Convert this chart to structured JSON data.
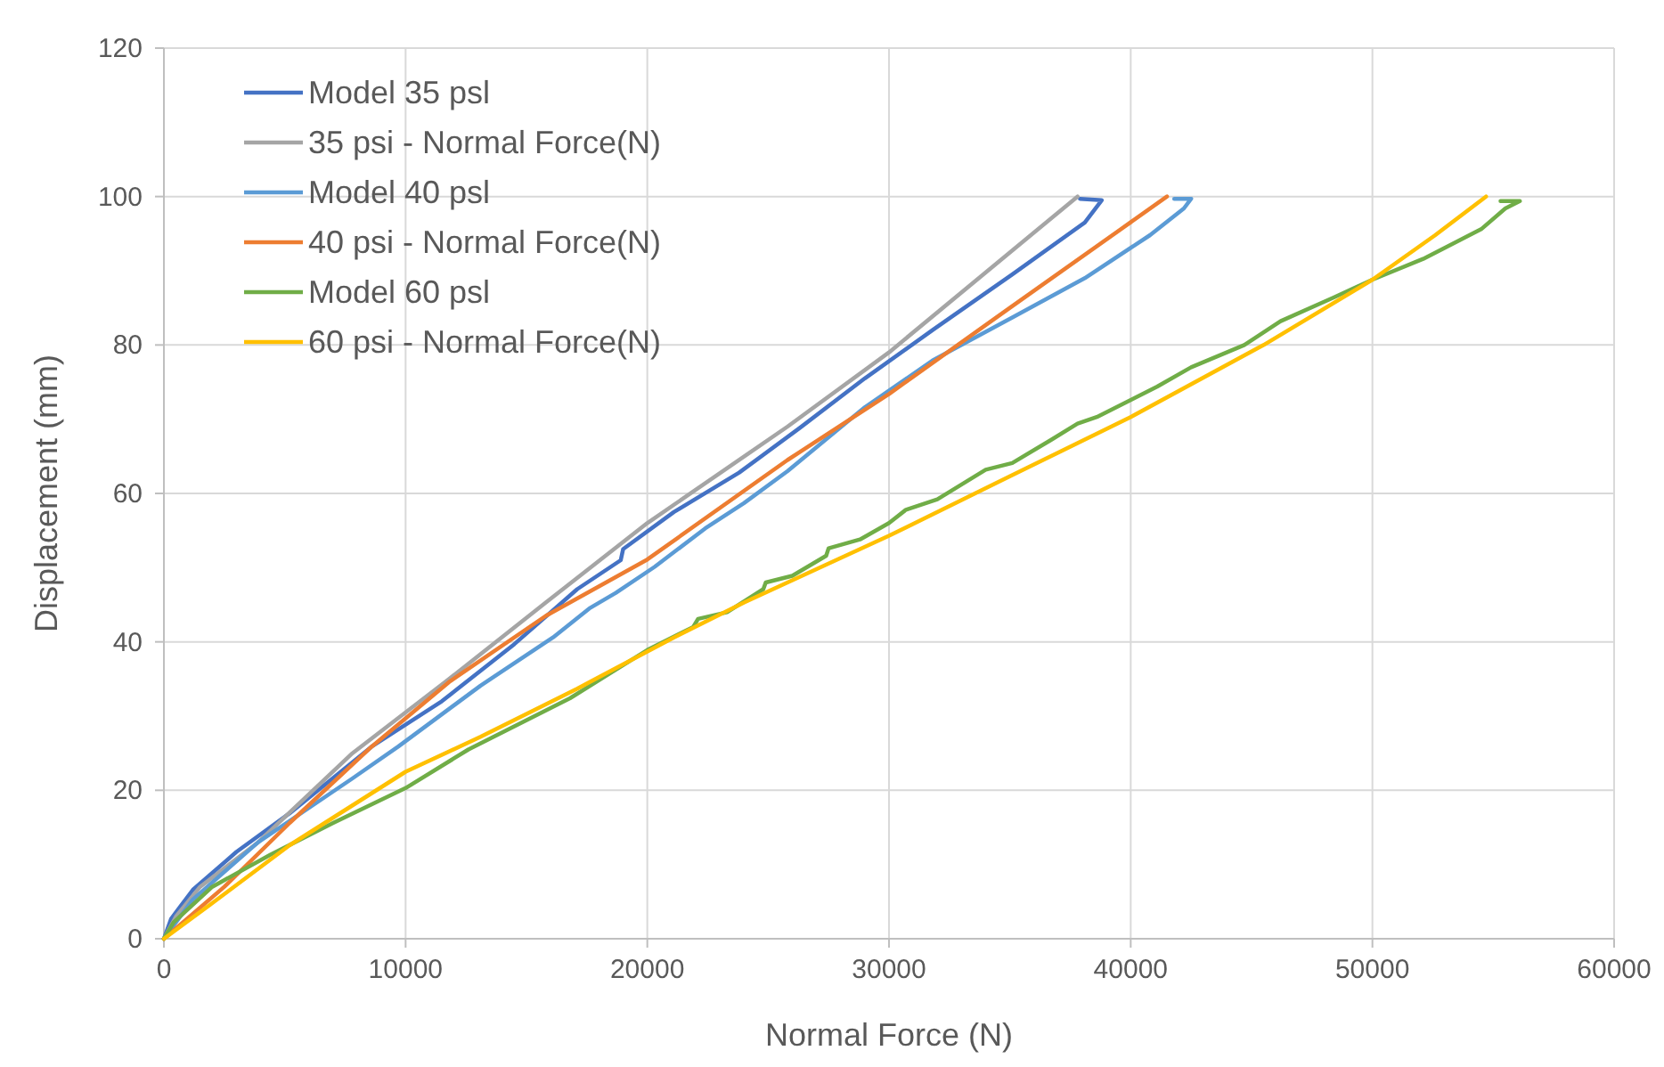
{
  "chart_data": {
    "type": "line",
    "xlabel": "Normal Force (N)",
    "ylabel": "Displacement (mm)",
    "xlim": [
      0,
      60000
    ],
    "xticks": [
      0,
      10000,
      20000,
      30000,
      40000,
      50000,
      60000
    ],
    "ylim": [
      0,
      120
    ],
    "yticks": [
      0,
      20,
      40,
      60,
      80,
      100,
      120
    ],
    "grid": true,
    "legend": "top left",
    "marker": "none",
    "line_style": "solid",
    "series": [
      {
        "name": "Model 35 psl",
        "color": "#4472c4",
        "x": [
          0,
          300,
          1200,
          3000,
          5200,
          8600,
          11500,
          14500,
          17100,
          18900,
          19000,
          21100,
          23800,
          26300,
          29000,
          31800,
          35100,
          38100,
          38800,
          37900
        ],
        "values": [
          0,
          2.7,
          6.6,
          11.7,
          16.9,
          25.9,
          32,
          39.7,
          47.1,
          51,
          52.5,
          57.5,
          62.8,
          68.8,
          75.5,
          82,
          89.5,
          96.5,
          99.5,
          99.7
        ]
      },
      {
        "name": "35 psi - Normal Force(N)",
        "color": "#a5a5a5",
        "x": [
          0,
          500,
          1500,
          3900,
          7800,
          11800,
          15800,
          20000,
          25800,
          30000,
          37800
        ],
        "values": [
          0,
          3,
          7,
          13,
          25,
          35,
          45.3,
          56,
          69,
          79,
          100
        ]
      },
      {
        "name": "Model 40 psl",
        "color": "#5b9bd5",
        "x": [
          0,
          1200,
          3900,
          7800,
          9700,
          13100,
          16100,
          17600,
          18700,
          20300,
          22400,
          24000,
          25800,
          29000,
          31800,
          35100,
          38100,
          40800,
          42200,
          42500,
          41800
        ],
        "values": [
          0,
          5.3,
          13,
          21.6,
          25.9,
          34.1,
          40.6,
          44.5,
          46.6,
          50.1,
          55.3,
          58.7,
          63,
          71.6,
          77.9,
          83.7,
          89,
          94.8,
          98.4,
          99.7,
          99.7
        ]
      },
      {
        "name": "40 psi - Normal Force(N)",
        "color": "#ed7d31",
        "x": [
          0,
          2500,
          5200,
          8600,
          11800,
          15800,
          20000,
          25800,
          30000,
          35000,
          41500
        ],
        "values": [
          0,
          7,
          15.6,
          25.9,
          34.6,
          43.5,
          51.1,
          64.5,
          73.4,
          85,
          100
        ]
      },
      {
        "name": "Model 60 psl",
        "color": "#70ad47",
        "x": [
          0,
          400,
          2000,
          4400,
          7000,
          10000,
          12600,
          16800,
          20000,
          21900,
          22100,
          23300,
          24800,
          24900,
          26000,
          27400,
          27500,
          28800,
          30000,
          30700,
          32000,
          34000,
          35100,
          36700,
          37800,
          38600,
          41100,
          42500,
          44700,
          46200,
          48400,
          50000,
          52100,
          54500,
          55500,
          56100,
          55300
        ],
        "values": [
          0,
          2.2,
          7,
          11.3,
          15.6,
          20.3,
          25.5,
          32.4,
          38.9,
          42,
          43.1,
          44,
          47.1,
          48,
          48.9,
          51.6,
          52.6,
          53.8,
          56,
          57.8,
          59.2,
          63.2,
          64.1,
          67.2,
          69.4,
          70.3,
          74.4,
          77,
          80,
          83.2,
          86.4,
          88.8,
          91.6,
          95.6,
          98.4,
          99.4,
          99.4
        ]
      },
      {
        "name": "60 psi - Normal Force(N)",
        "color": "#ffc000",
        "x": [
          0,
          2000,
          5200,
          10000,
          13100,
          17100,
          21100,
          24000,
          30000,
          35000,
          40000,
          45500,
          50000,
          52600,
          54700
        ],
        "values": [
          0,
          4.8,
          12.6,
          22.5,
          27.2,
          33.7,
          40.6,
          45.3,
          54.3,
          62.3,
          70.3,
          80,
          88.8,
          94.8,
          100
        ]
      }
    ]
  }
}
